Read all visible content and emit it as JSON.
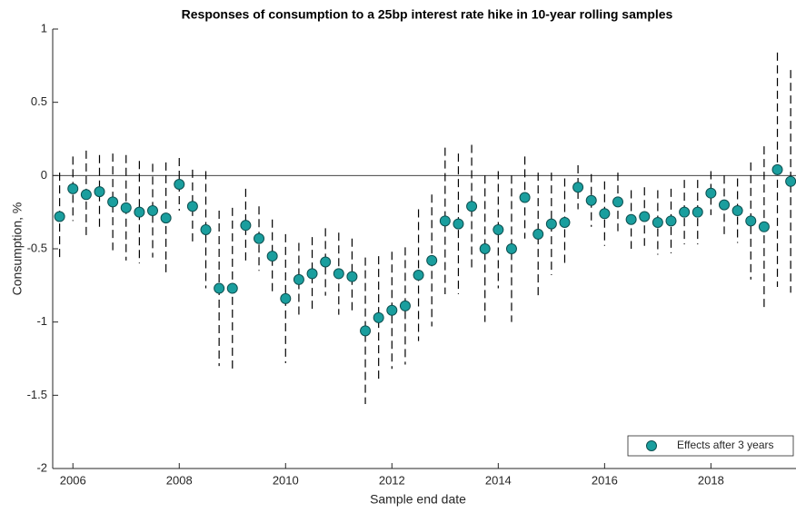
{
  "chart_data": {
    "type": "errorbar-scatter",
    "title": "Responses of consumption to a 25bp interest rate hike in 10-year rolling samples",
    "x_label": "Sample end date",
    "y_label": "Consumption, %",
    "xlim": [
      2005.62,
      2019.6
    ],
    "xticks": [
      2006,
      2008,
      2010,
      2012,
      2014,
      2016,
      2018
    ],
    "ylim": [
      -2,
      1
    ],
    "yticks": [
      -2,
      -1.5,
      -1,
      -0.5,
      0,
      0.5,
      1
    ],
    "legend": "lower right",
    "x": [
      2005.75,
      2006,
      2006.25,
      2006.5,
      2006.75,
      2007,
      2007.25,
      2007.5,
      2007.75,
      2008,
      2008.25,
      2008.5,
      2008.75,
      2009,
      2009.25,
      2009.5,
      2009.75,
      2010,
      2010.25,
      2010.5,
      2010.75,
      2011,
      2011.25,
      2011.5,
      2011.75,
      2012,
      2012.25,
      2012.5,
      2012.75,
      2013,
      2013.25,
      2013.5,
      2013.75,
      2014,
      2014.25,
      2014.5,
      2014.75,
      2015,
      2015.25,
      2015.5,
      2015.75,
      2016,
      2016.25,
      2016.5,
      2016.75,
      2017,
      2017.25,
      2017.5,
      2017.75,
      2018,
      2018.25,
      2018.5,
      2018.75,
      2019,
      2019.25,
      2019.5
    ],
    "series": [
      {
        "name": "Effects after 3 years",
        "color": "#1a9e9e",
        "edge_color": "#0d4f4f",
        "error_color": "#000000",
        "values": [
          -0.28,
          -0.09,
          -0.13,
          -0.11,
          -0.18,
          -0.22,
          -0.25,
          -0.24,
          -0.29,
          -0.06,
          -0.21,
          -0.37,
          -0.77,
          -0.77,
          -0.34,
          -0.43,
          -0.55,
          -0.84,
          -0.71,
          -0.67,
          -0.59,
          -0.67,
          -0.69,
          -1.06,
          -0.97,
          -0.92,
          -0.89,
          -0.68,
          -0.58,
          -0.31,
          -0.33,
          -0.21,
          -0.5,
          -0.37,
          -0.5,
          -0.15,
          -0.4,
          -0.33,
          -0.32,
          -0.08,
          -0.17,
          -0.26,
          -0.18,
          -0.3,
          -0.28,
          -0.32,
          -0.31,
          -0.25,
          -0.25,
          -0.12,
          -0.2,
          -0.24,
          -0.31,
          -0.35,
          0.04,
          -0.04
        ],
        "errors": [
          0.3,
          0.22,
          0.3,
          0.25,
          0.33,
          0.36,
          0.35,
          0.32,
          0.38,
          0.18,
          0.25,
          0.4,
          0.53,
          0.55,
          0.25,
          0.22,
          0.25,
          0.44,
          0.25,
          0.25,
          0.23,
          0.28,
          0.26,
          0.5,
          0.42,
          0.4,
          0.4,
          0.45,
          0.45,
          0.5,
          0.48,
          0.42,
          0.5,
          0.4,
          0.5,
          0.28,
          0.42,
          0.35,
          0.3,
          0.15,
          0.18,
          0.22,
          0.2,
          0.2,
          0.2,
          0.22,
          0.22,
          0.22,
          0.22,
          0.15,
          0.2,
          0.22,
          0.4,
          0.55,
          0.8,
          0.76
        ]
      }
    ]
  }
}
